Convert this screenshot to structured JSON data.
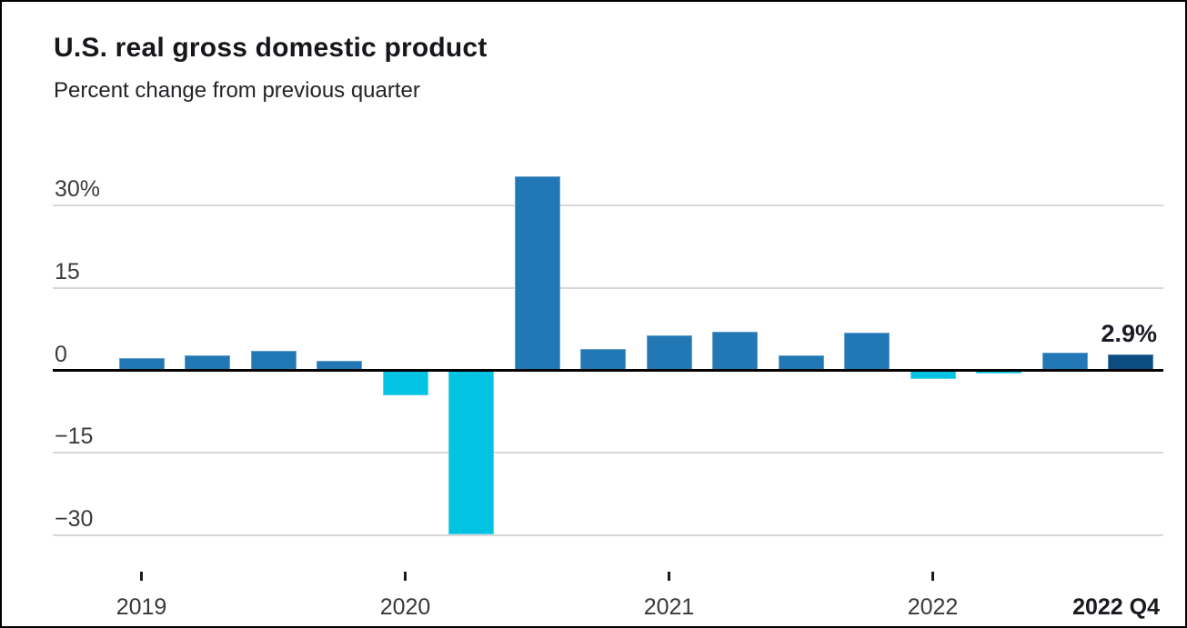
{
  "header": {
    "title": "U.S. real gross domestic product",
    "subtitle": "Percent change from previous quarter"
  },
  "chart_data": {
    "type": "bar",
    "title": "U.S. real gross domestic product",
    "subtitle": "Percent change from previous quarter",
    "unit": "percent",
    "x": [
      "2019 Q1",
      "2019 Q2",
      "2019 Q3",
      "2019 Q4",
      "2020 Q1",
      "2020 Q2",
      "2020 Q3",
      "2020 Q4",
      "2021 Q1",
      "2021 Q2",
      "2021 Q3",
      "2021 Q4",
      "2022 Q1",
      "2022 Q2",
      "2022 Q3",
      "2022 Q4"
    ],
    "values": [
      2.2,
      2.7,
      3.6,
      1.8,
      -4.6,
      -29.9,
      35.3,
      3.9,
      6.3,
      7.0,
      2.7,
      6.9,
      -1.6,
      -0.6,
      3.2,
      2.9
    ],
    "ylim": [
      -33,
      37
    ],
    "grid": true,
    "legend": "none",
    "yticks": [
      {
        "label": "30%",
        "value": 30
      },
      {
        "label": "15",
        "value": 15
      },
      {
        "label": "0",
        "value": 0
      },
      {
        "label": "−15",
        "value": -15
      },
      {
        "label": "−30",
        "value": -30
      }
    ],
    "xticks": [
      {
        "label": "2019",
        "quarter_index": 0
      },
      {
        "label": "2020",
        "quarter_index": 4
      },
      {
        "label": "2021",
        "quarter_index": 8
      },
      {
        "label": "2022",
        "quarter_index": 12
      }
    ],
    "end_axis_label": "2022 Q4",
    "annotation": {
      "text": "2.9%",
      "index": 15
    },
    "highlight_index": 15,
    "colors": {
      "positive": "#2277b5",
      "negative": "#02c3e2",
      "highlight": "#0b4d80",
      "gridline": "#d8d8d8",
      "zero_line": "#000000"
    }
  }
}
